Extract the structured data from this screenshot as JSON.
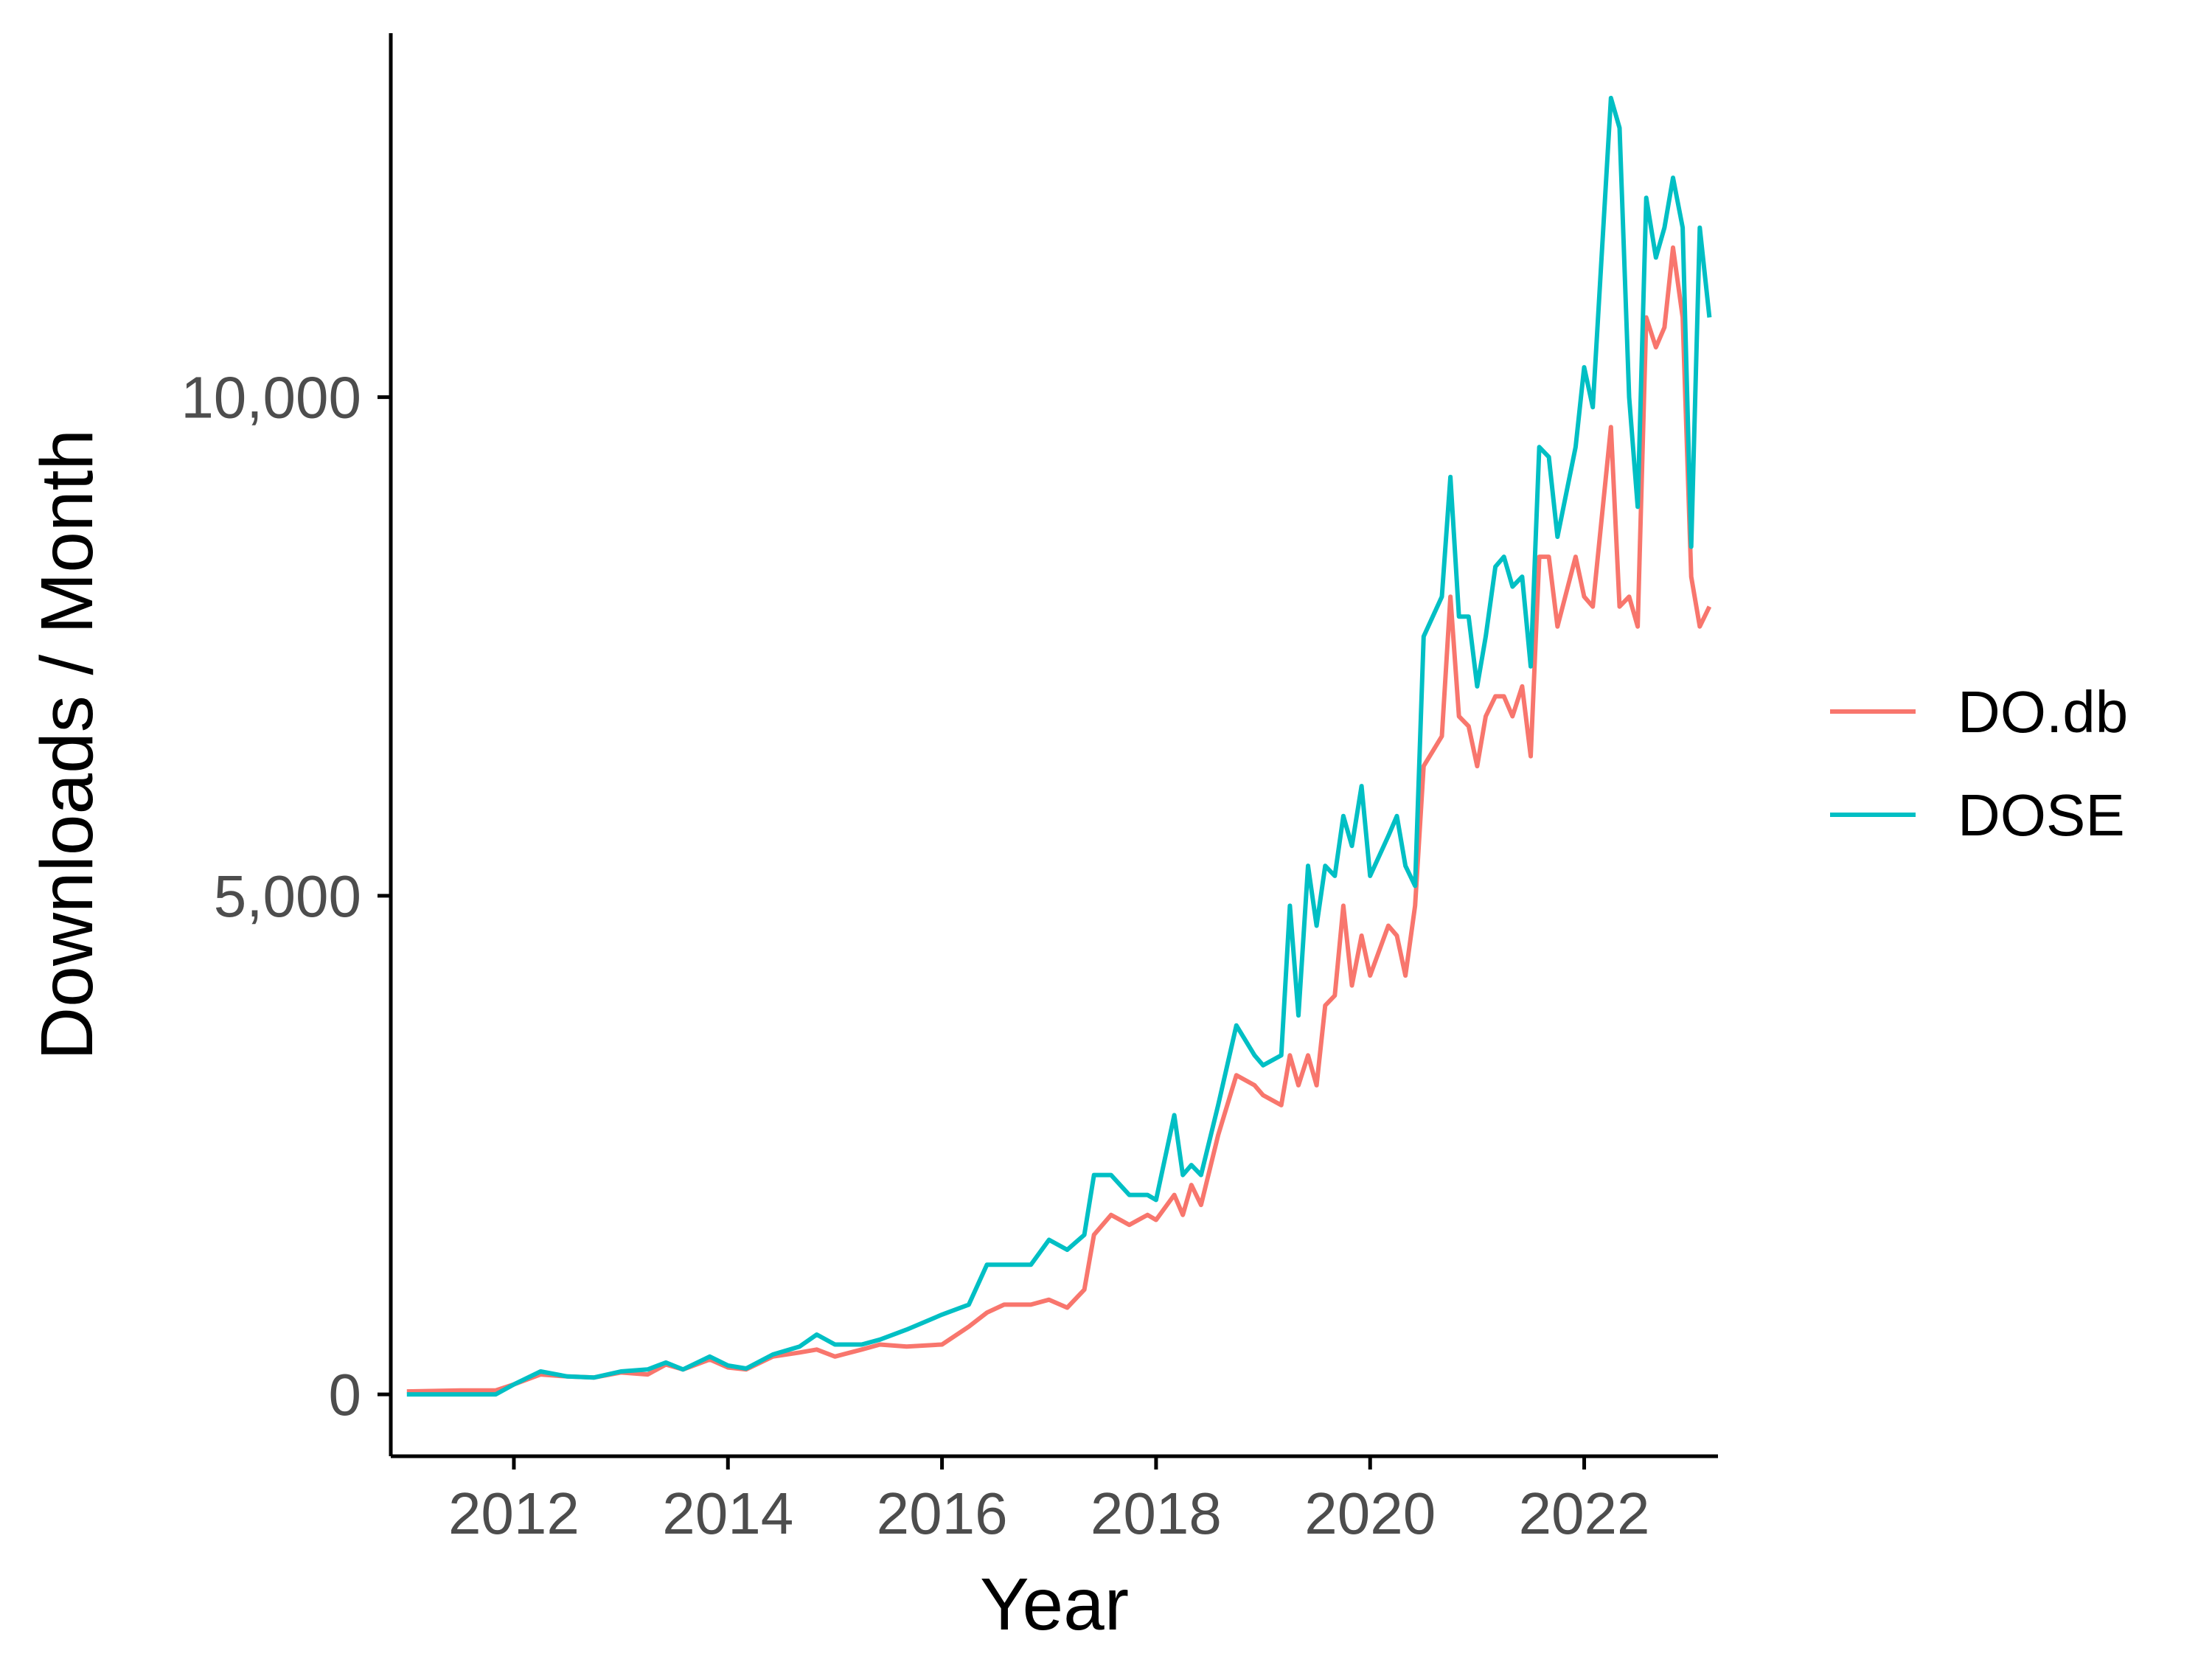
{
  "chart_data": {
    "type": "line",
    "xlabel": "Year",
    "ylabel": "Downloads / Month",
    "xlim": [
      2010.85,
      2023.25
    ],
    "ylim": [
      -620,
      13650
    ],
    "x_ticks": [
      {
        "value": 2012,
        "label": "2012"
      },
      {
        "value": 2014,
        "label": "2014"
      },
      {
        "value": 2016,
        "label": "2016"
      },
      {
        "value": 2018,
        "label": "2018"
      },
      {
        "value": 2020,
        "label": "2020"
      },
      {
        "value": 2022,
        "label": "2022"
      }
    ],
    "y_ticks": [
      {
        "value": 0,
        "label": "0"
      },
      {
        "value": 5000,
        "label": "5,000"
      },
      {
        "value": 10000,
        "label": "10,000"
      }
    ],
    "grid": false,
    "legend_position": "right",
    "series": [
      {
        "name": "DO.db",
        "color": "#F8766D",
        "points": [
          [
            2011.0,
            30
          ],
          [
            2011.5,
            40
          ],
          [
            2011.83,
            40
          ],
          [
            2012.0,
            100
          ],
          [
            2012.25,
            200
          ],
          [
            2012.5,
            180
          ],
          [
            2012.75,
            170
          ],
          [
            2013.0,
            220
          ],
          [
            2013.25,
            200
          ],
          [
            2013.42,
            300
          ],
          [
            2013.58,
            250
          ],
          [
            2013.83,
            350
          ],
          [
            2014.0,
            270
          ],
          [
            2014.17,
            250
          ],
          [
            2014.42,
            380
          ],
          [
            2014.67,
            420
          ],
          [
            2014.83,
            450
          ],
          [
            2015.0,
            380
          ],
          [
            2015.25,
            450
          ],
          [
            2015.42,
            500
          ],
          [
            2015.67,
            480
          ],
          [
            2016.0,
            500
          ],
          [
            2016.25,
            680
          ],
          [
            2016.42,
            820
          ],
          [
            2016.58,
            900
          ],
          [
            2016.83,
            900
          ],
          [
            2017.0,
            950
          ],
          [
            2017.17,
            870
          ],
          [
            2017.33,
            1050
          ],
          [
            2017.42,
            1600
          ],
          [
            2017.58,
            1800
          ],
          [
            2017.75,
            1700
          ],
          [
            2017.92,
            1800
          ],
          [
            2018.0,
            1750
          ],
          [
            2018.17,
            2000
          ],
          [
            2018.25,
            1800
          ],
          [
            2018.33,
            2100
          ],
          [
            2018.42,
            1900
          ],
          [
            2018.58,
            2600
          ],
          [
            2018.75,
            3200
          ],
          [
            2018.92,
            3100
          ],
          [
            2019.0,
            3000
          ],
          [
            2019.17,
            2900
          ],
          [
            2019.25,
            3400
          ],
          [
            2019.33,
            3100
          ],
          [
            2019.42,
            3400
          ],
          [
            2019.5,
            3100
          ],
          [
            2019.58,
            3900
          ],
          [
            2019.67,
            4000
          ],
          [
            2019.75,
            4900
          ],
          [
            2019.83,
            4100
          ],
          [
            2019.92,
            4600
          ],
          [
            2020.0,
            4200
          ],
          [
            2020.17,
            4700
          ],
          [
            2020.25,
            4600
          ],
          [
            2020.33,
            4200
          ],
          [
            2020.42,
            4900
          ],
          [
            2020.5,
            6300
          ],
          [
            2020.67,
            6600
          ],
          [
            2020.75,
            8000
          ],
          [
            2020.83,
            6800
          ],
          [
            2020.92,
            6700
          ],
          [
            2021.0,
            6300
          ],
          [
            2021.08,
            6800
          ],
          [
            2021.17,
            7000
          ],
          [
            2021.25,
            7000
          ],
          [
            2021.33,
            6800
          ],
          [
            2021.42,
            7100
          ],
          [
            2021.5,
            6400
          ],
          [
            2021.58,
            8400
          ],
          [
            2021.67,
            8400
          ],
          [
            2021.75,
            7700
          ],
          [
            2021.92,
            8400
          ],
          [
            2022.0,
            8000
          ],
          [
            2022.08,
            7900
          ],
          [
            2022.25,
            9700
          ],
          [
            2022.33,
            7900
          ],
          [
            2022.42,
            8000
          ],
          [
            2022.5,
            7700
          ],
          [
            2022.58,
            10800
          ],
          [
            2022.67,
            10500
          ],
          [
            2022.75,
            10700
          ],
          [
            2022.83,
            11500
          ],
          [
            2022.92,
            10800
          ],
          [
            2023.0,
            8200
          ],
          [
            2023.08,
            7700
          ],
          [
            2023.17,
            7900
          ]
        ]
      },
      {
        "name": "DOSE",
        "color": "#00BFC4",
        "points": [
          [
            2011.0,
            0
          ],
          [
            2011.5,
            0
          ],
          [
            2011.83,
            0
          ],
          [
            2012.0,
            100
          ],
          [
            2012.25,
            230
          ],
          [
            2012.5,
            180
          ],
          [
            2012.75,
            170
          ],
          [
            2013.0,
            230
          ],
          [
            2013.25,
            250
          ],
          [
            2013.42,
            320
          ],
          [
            2013.58,
            250
          ],
          [
            2013.83,
            380
          ],
          [
            2014.0,
            290
          ],
          [
            2014.17,
            260
          ],
          [
            2014.42,
            400
          ],
          [
            2014.67,
            480
          ],
          [
            2014.83,
            600
          ],
          [
            2015.0,
            500
          ],
          [
            2015.25,
            500
          ],
          [
            2015.42,
            550
          ],
          [
            2015.67,
            650
          ],
          [
            2016.0,
            800
          ],
          [
            2016.25,
            900
          ],
          [
            2016.42,
            1300
          ],
          [
            2016.58,
            1300
          ],
          [
            2016.83,
            1300
          ],
          [
            2017.0,
            1550
          ],
          [
            2017.17,
            1450
          ],
          [
            2017.33,
            1600
          ],
          [
            2017.42,
            2200
          ],
          [
            2017.58,
            2200
          ],
          [
            2017.75,
            2000
          ],
          [
            2017.92,
            2000
          ],
          [
            2018.0,
            1950
          ],
          [
            2018.17,
            2800
          ],
          [
            2018.25,
            2200
          ],
          [
            2018.33,
            2300
          ],
          [
            2018.42,
            2200
          ],
          [
            2018.58,
            2900
          ],
          [
            2018.75,
            3700
          ],
          [
            2018.92,
            3400
          ],
          [
            2019.0,
            3300
          ],
          [
            2019.17,
            3400
          ],
          [
            2019.25,
            4900
          ],
          [
            2019.33,
            3800
          ],
          [
            2019.42,
            5300
          ],
          [
            2019.5,
            4700
          ],
          [
            2019.58,
            5300
          ],
          [
            2019.67,
            5200
          ],
          [
            2019.75,
            5800
          ],
          [
            2019.83,
            5500
          ],
          [
            2019.92,
            6100
          ],
          [
            2020.0,
            5200
          ],
          [
            2020.17,
            5600
          ],
          [
            2020.25,
            5800
          ],
          [
            2020.33,
            5300
          ],
          [
            2020.42,
            5100
          ],
          [
            2020.5,
            7600
          ],
          [
            2020.67,
            8000
          ],
          [
            2020.75,
            9200
          ],
          [
            2020.83,
            7800
          ],
          [
            2020.92,
            7800
          ],
          [
            2021.0,
            7100
          ],
          [
            2021.08,
            7600
          ],
          [
            2021.17,
            8300
          ],
          [
            2021.25,
            8400
          ],
          [
            2021.33,
            8100
          ],
          [
            2021.42,
            8200
          ],
          [
            2021.5,
            7300
          ],
          [
            2021.58,
            9500
          ],
          [
            2021.67,
            9400
          ],
          [
            2021.75,
            8600
          ],
          [
            2021.92,
            9500
          ],
          [
            2022.0,
            10300
          ],
          [
            2022.08,
            9900
          ],
          [
            2022.25,
            13000
          ],
          [
            2022.33,
            12700
          ],
          [
            2022.42,
            10000
          ],
          [
            2022.5,
            8900
          ],
          [
            2022.58,
            12000
          ],
          [
            2022.67,
            11400
          ],
          [
            2022.75,
            11700
          ],
          [
            2022.83,
            12200
          ],
          [
            2022.92,
            11700
          ],
          [
            2023.0,
            8500
          ],
          [
            2023.08,
            11700
          ],
          [
            2023.17,
            10800
          ]
        ]
      }
    ]
  }
}
